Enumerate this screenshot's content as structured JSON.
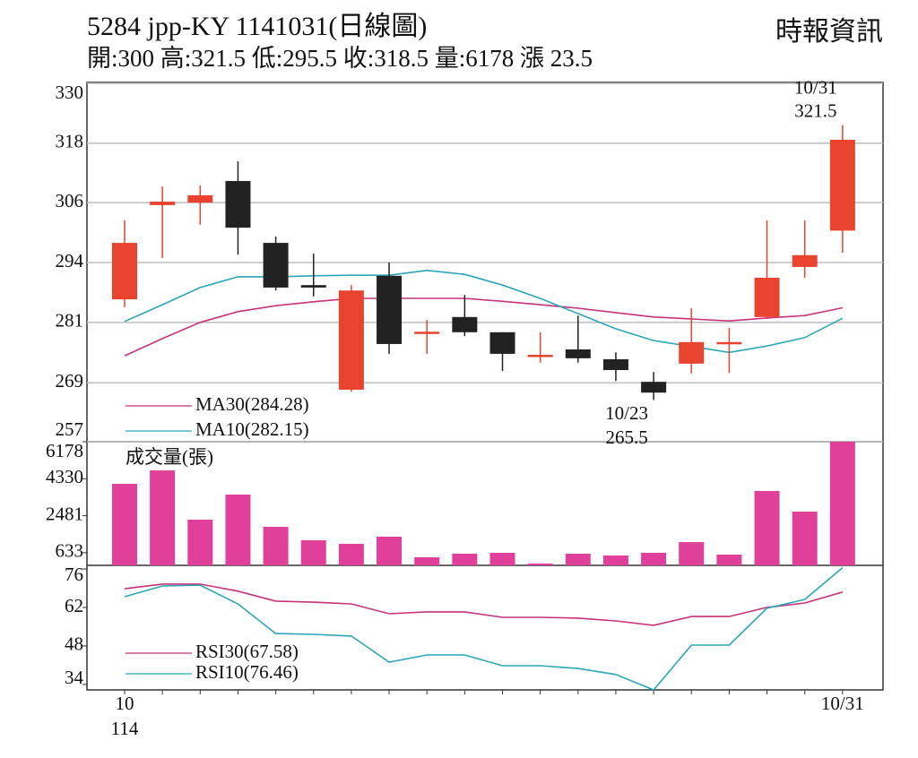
{
  "chart_data": [
    {
      "type": "candlestick",
      "title": "5284  jpp-KY 1141031(日線圖)",
      "subtitle": "開:300 高:321.5 低:295.5 收:318.5 量:6178 漲 23.5",
      "source": "時報資訊",
      "categories": [
        "10\n114",
        null,
        null,
        null,
        null,
        null,
        null,
        null,
        null,
        null,
        null,
        null,
        null,
        null,
        null,
        null,
        null,
        null,
        null,
        "10/31"
      ],
      "open": [
        286.0,
        305.2,
        305.7,
        310.1,
        297.5,
        288.9,
        267.6,
        290.8,
        279.1,
        282.4,
        279.3,
        274.7,
        275.8,
        273.8,
        269.2,
        272.9,
        276.9,
        282.4,
        292.6,
        300
      ],
      "high": [
        302.1,
        309.0,
        309.2,
        314.1,
        298.8,
        295.3,
        288.9,
        293.5,
        281.8,
        286.9,
        279.3,
        279.3,
        282.7,
        275.2,
        271.2,
        284.2,
        280.2,
        302.1,
        302.1,
        321.5
      ],
      "low": [
        284.4,
        294.4,
        301.2,
        295.1,
        287.8,
        286.6,
        267.2,
        274.9,
        274.9,
        278.5,
        271.4,
        273.1,
        273.1,
        269.4,
        265.5,
        270.9,
        271.0,
        282.0,
        290.4,
        295.5
      ],
      "close": [
        297.5,
        305.9,
        307.2,
        300.6,
        288.4,
        288.4,
        287.8,
        276.9,
        279.4,
        279.3,
        274.9,
        274.7,
        274.0,
        271.6,
        267.0,
        277.3,
        277.3,
        290.4,
        295.0,
        318.5
      ],
      "up_color": "#e8432e",
      "down_color": "#222222",
      "series": [
        {
          "name": "MA30(284.28)",
          "color": "#c8327a",
          "values": [
            274.5,
            278.0,
            281.3,
            283.5,
            284.7,
            285.5,
            286.2,
            286.2,
            286.2,
            286.2,
            285.6,
            284.9,
            284.2,
            283.3,
            282.4,
            282.0,
            281.6,
            282.2,
            282.7,
            284.28
          ]
        },
        {
          "name": "MA10(282.15)",
          "color": "#2aa6b8",
          "values": [
            281.5,
            284.9,
            288.4,
            290.6,
            290.6,
            290.8,
            290.9,
            290.9,
            291.9,
            291.1,
            288.9,
            286.2,
            283.1,
            280.0,
            277.6,
            276.4,
            275.2,
            276.5,
            278.2,
            282.15
          ]
        }
      ],
      "annotations": [
        {
          "text": "10/31",
          "value": 321.5
        },
        {
          "text": "10/23",
          "value": 265.5
        }
      ],
      "ylim": [
        257,
        330
      ],
      "yticks": [
        257,
        {
          "value": 269.0,
          "label": "269"
        },
        {
          "value": 281.3,
          "label": "281"
        },
        {
          "value": 293.5,
          "label": "294"
        },
        {
          "value": 305.7,
          "label": "306"
        },
        {
          "value": 317.8,
          "label": "318"
        },
        330
      ],
      "grid": true
    },
    {
      "type": "bar",
      "title": "成交量(張)",
      "values": [
        4074,
        4745,
        2283,
        3537,
        1925,
        1253,
        1074,
        1433,
        403,
        582,
        627,
        90,
        582,
        492,
        627,
        1164,
        537,
        3716,
        2686,
        6178
      ],
      "color": "#e0409a",
      "ylim": [
        0,
        6178
      ],
      "yticks": [
        633,
        2481,
        4330,
        6178
      ]
    },
    {
      "type": "line",
      "series": [
        {
          "name": "RSI30(67.58)",
          "color": "#c8327a",
          "values": [
            68.8,
            70.5,
            70.5,
            67.9,
            64.3,
            63.9,
            63.3,
            59.7,
            60.4,
            60.4,
            58.4,
            58.4,
            58.1,
            57.1,
            55.5,
            58.7,
            58.7,
            62.0,
            63.6,
            67.58
          ]
        },
        {
          "name": "RSI10(76.46)",
          "color": "#2aa6b8",
          "values": [
            65.9,
            69.8,
            70.1,
            63.3,
            52.5,
            52.2,
            51.6,
            42.1,
            44.7,
            44.7,
            40.8,
            40.8,
            39.8,
            37.6,
            32.0,
            48.3,
            48.3,
            61.7,
            64.9,
            76.46
          ]
        }
      ],
      "ylim": [
        32,
        77.3
      ],
      "yticks": [
        34,
        48,
        62,
        76
      ]
    }
  ]
}
